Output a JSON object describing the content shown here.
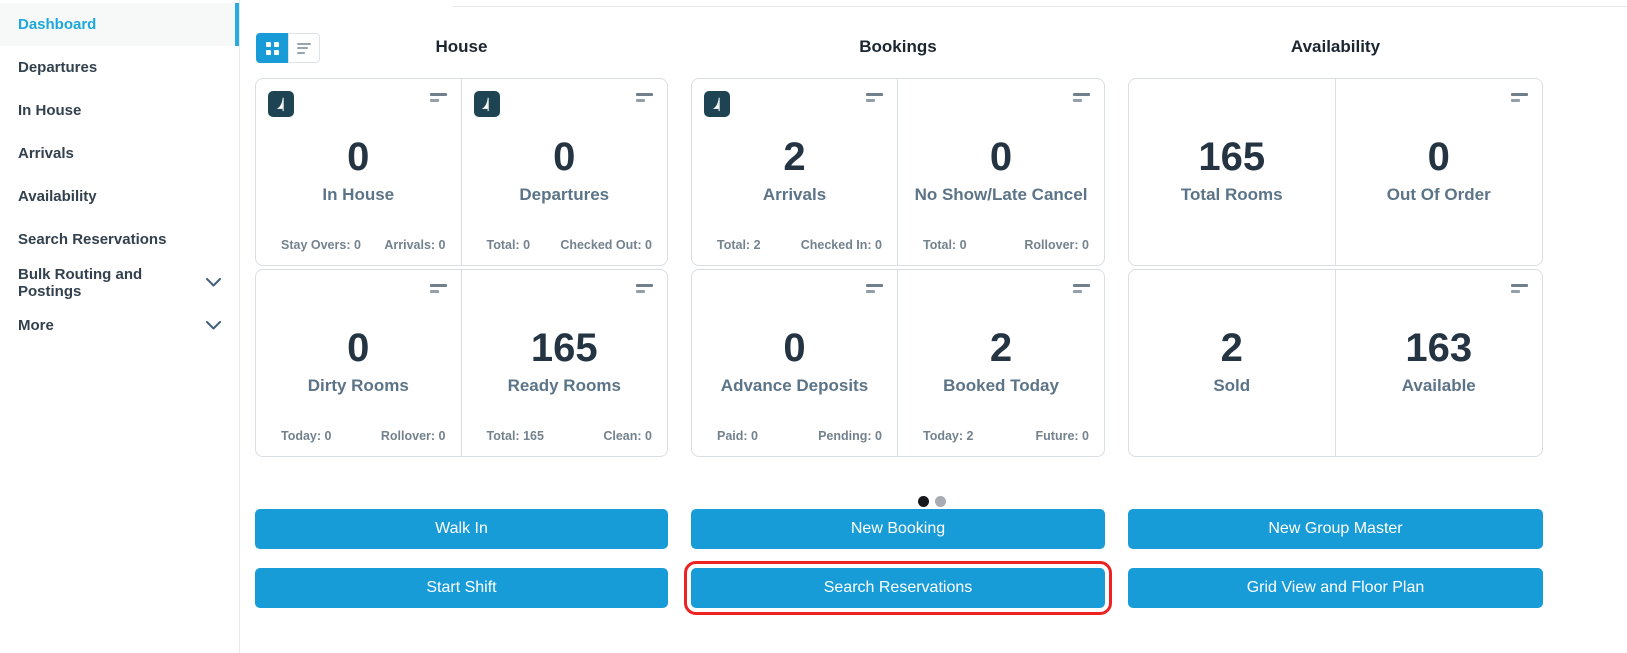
{
  "colors": {
    "accent": "#189cd8",
    "sidebar_active": "#1ca8dd",
    "highlight_outline": "#ee2222",
    "logo_bg": "#1e4453",
    "card_value": "#243442",
    "card_label": "#5c7488",
    "active_dot": "#16181b"
  },
  "icons": [
    "grid-view-icon",
    "list-view-icon",
    "brand-logo-icon",
    "card-menu-icon",
    "chevron-down-icon",
    "carousel-dot"
  ],
  "sidebar": {
    "items": [
      {
        "label": "Dashboard",
        "active": true
      },
      {
        "label": "Departures"
      },
      {
        "label": "In House"
      },
      {
        "label": "Arrivals"
      },
      {
        "label": "Availability"
      },
      {
        "label": "Search Reservations"
      },
      {
        "label": "Bulk Routing and Postings",
        "expandable": true
      },
      {
        "label": "More",
        "expandable": true
      }
    ]
  },
  "view_toggle": {
    "options": [
      {
        "icon": "grid-view-icon",
        "active": true
      },
      {
        "icon": "list-view-icon",
        "active": false
      }
    ]
  },
  "sections": [
    {
      "title": "House",
      "rows": [
        {
          "cells": [
            {
              "value": "0",
              "label": "In House",
              "logo": true,
              "menu": true,
              "footer": {
                "left": "Stay Overs: 0",
                "right": "Arrivals: 0"
              }
            },
            {
              "value": "0",
              "label": "Departures",
              "logo": true,
              "menu": true,
              "footer": {
                "left": "Total: 0",
                "right": "Checked Out: 0"
              }
            }
          ]
        },
        {
          "cells": [
            {
              "value": "0",
              "label": "Dirty Rooms",
              "menu": true,
              "footer": {
                "left": "Today: 0",
                "right": "Rollover: 0"
              }
            },
            {
              "value": "165",
              "label": "Ready Rooms",
              "menu": true,
              "footer": {
                "left": "Total: 165",
                "right": "Clean: 0"
              }
            }
          ]
        }
      ]
    },
    {
      "title": "Bookings",
      "rows": [
        {
          "cells": [
            {
              "value": "2",
              "label": "Arrivals",
              "logo": true,
              "menu": true,
              "footer": {
                "left": "Total: 2",
                "right": "Checked In: 0"
              }
            },
            {
              "value": "0",
              "label": "No Show/Late Cancel",
              "menu": true,
              "footer": {
                "left": "Total: 0",
                "right": "Rollover: 0"
              }
            }
          ]
        },
        {
          "cells": [
            {
              "value": "0",
              "label": "Advance Deposits",
              "menu": true,
              "footer": {
                "left": "Paid: 0",
                "right": "Pending: 0"
              }
            },
            {
              "value": "2",
              "label": "Booked Today",
              "menu": true,
              "footer": {
                "left": "Today: 2",
                "right": "Future: 0"
              }
            }
          ]
        }
      ]
    },
    {
      "title": "Availability",
      "rows": [
        {
          "cells": [
            {
              "value": "165",
              "label": "Total Rooms"
            },
            {
              "value": "0",
              "label": "Out Of Order",
              "menu": true
            }
          ]
        },
        {
          "cells": [
            {
              "value": "2",
              "label": "Sold"
            },
            {
              "value": "163",
              "label": "Available",
              "menu": true
            }
          ]
        }
      ]
    }
  ],
  "carousel": {
    "dots": [
      {
        "active": true
      },
      {
        "active": false
      }
    ]
  },
  "actions": {
    "rows": [
      [
        {
          "label": "Walk In"
        },
        {
          "label": "New Booking"
        },
        {
          "label": "New Group Master"
        }
      ],
      [
        {
          "label": "Start Shift"
        },
        {
          "label": "Search Reservations",
          "highlighted": true
        },
        {
          "label": "Grid View and Floor Plan"
        }
      ]
    ]
  }
}
